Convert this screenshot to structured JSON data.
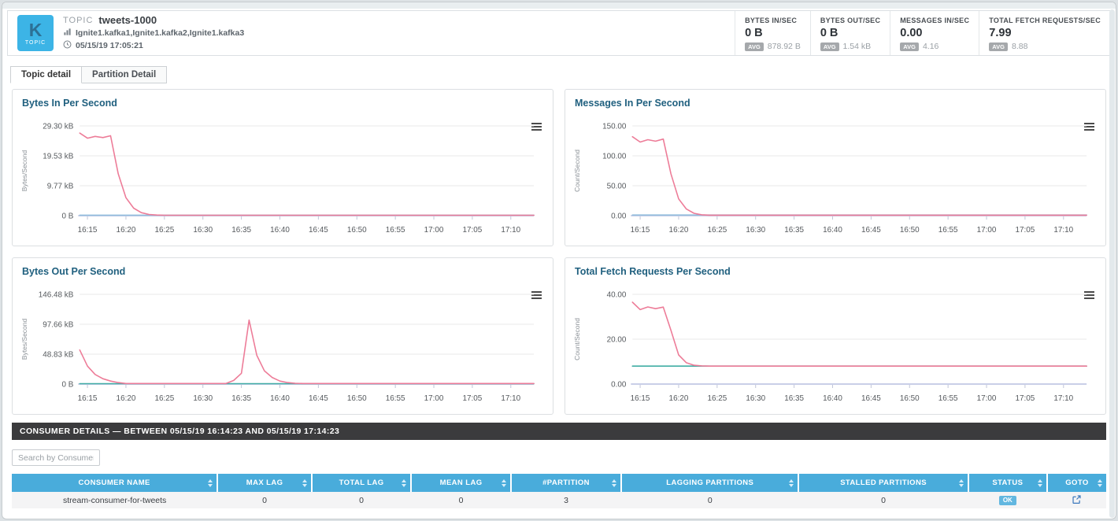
{
  "header": {
    "badge": {
      "letter": "K",
      "label": "TOPIC"
    },
    "topic_type_label": "TOPIC",
    "topic_name": "tweets-1000",
    "hosts": "Ignite1.kafka1,Ignite1.kafka2,Ignite1.kafka3",
    "timestamp": "05/15/19 17:05:21",
    "metrics": [
      {
        "label": "BYTES IN/SEC",
        "value": "0 B",
        "avg_badge": "AVG",
        "avg": "878.92 B"
      },
      {
        "label": "BYTES OUT/SEC",
        "value": "0 B",
        "avg_badge": "AVG",
        "avg": "1.54 kB"
      },
      {
        "label": "MESSAGES IN/SEC",
        "value": "0.00",
        "avg_badge": "AVG",
        "avg": "4.16"
      },
      {
        "label": "TOTAL FETCH REQUESTS/SEC",
        "value": "7.99",
        "avg_badge": "AVG",
        "avg": "8.88"
      }
    ]
  },
  "tabs": [
    {
      "label": "Topic detail",
      "active": true
    },
    {
      "label": "Partition Detail",
      "active": false
    }
  ],
  "chart_data": [
    {
      "type": "line",
      "title": "Bytes In Per Second",
      "ylabel": "Bytes/Second",
      "ylim": [
        0,
        30000
      ],
      "yticks": {
        "values": [
          0,
          10000,
          20000,
          30000
        ],
        "labels": [
          "0 B",
          "9.77 kB",
          "19.53 kB",
          "29.30 kB"
        ]
      },
      "n_points": 60,
      "x_start": "16:14",
      "x_ticks": {
        "indices": [
          1,
          6,
          11,
          16,
          21,
          26,
          31,
          36,
          41,
          46,
          51,
          56
        ],
        "labels": [
          "16:15",
          "16:20",
          "16:25",
          "16:30",
          "16:35",
          "16:40",
          "16:45",
          "16:50",
          "16:55",
          "17:00",
          "17:05",
          "17:10"
        ]
      },
      "grid": true,
      "legend": "none",
      "series": [
        {
          "name": "baseline-blue",
          "color": "#93bedd",
          "values": [
            150
          ],
          "repeat_last_to": 60
        },
        {
          "name": "bytes-in-pink",
          "color": "#ed7c98",
          "values": [
            27600,
            25900,
            26500,
            26100,
            26700,
            14000,
            6000,
            2500,
            1000,
            400,
            200,
            120
          ],
          "repeat_last_to": 60
        }
      ]
    },
    {
      "type": "line",
      "title": "Messages In Per Second",
      "ylabel": "Count/Second",
      "ylim": [
        0,
        150
      ],
      "yticks": {
        "values": [
          0,
          50,
          100,
          150
        ],
        "labels": [
          "0.00",
          "50.00",
          "100.00",
          "150.00"
        ]
      },
      "n_points": 60,
      "x_start": "16:14",
      "x_ticks": {
        "indices": [
          1,
          6,
          11,
          16,
          21,
          26,
          31,
          36,
          41,
          46,
          51,
          56
        ],
        "labels": [
          "16:15",
          "16:20",
          "16:25",
          "16:30",
          "16:35",
          "16:40",
          "16:45",
          "16:50",
          "16:55",
          "17:00",
          "17:05",
          "17:10"
        ]
      },
      "grid": true,
      "legend": "none",
      "series": [
        {
          "name": "baseline-blue",
          "color": "#93bedd",
          "values": [
            1
          ],
          "repeat_last_to": 60
        },
        {
          "name": "messages-in-pink",
          "color": "#ed7c98",
          "values": [
            132,
            123,
            127,
            124.5,
            128,
            70,
            28,
            11,
            4,
            1.5,
            0.8
          ],
          "repeat_last_to": 60
        }
      ]
    },
    {
      "type": "line",
      "title": "Bytes Out Per Second",
      "ylabel": "Bytes/Second",
      "ylim": [
        0,
        150000
      ],
      "yticks": {
        "values": [
          0,
          50000,
          100000,
          150000
        ],
        "labels": [
          "0 B",
          "48.83 kB",
          "97.66 kB",
          "146.48 kB"
        ]
      },
      "n_points": 60,
      "x_start": "16:14",
      "x_ticks": {
        "indices": [
          1,
          6,
          11,
          16,
          21,
          26,
          31,
          36,
          41,
          46,
          51,
          56
        ],
        "labels": [
          "16:15",
          "16:20",
          "16:25",
          "16:30",
          "16:35",
          "16:40",
          "16:45",
          "16:50",
          "16:55",
          "17:00",
          "17:05",
          "17:10"
        ]
      },
      "grid": true,
      "legend": "none",
      "series": [
        {
          "name": "baseline-teal",
          "color": "#41ada5",
          "values": [
            600
          ],
          "repeat_last_to": 60
        },
        {
          "name": "bytes-out-pink",
          "color": "#ed7c98",
          "values": [
            57000,
            30000,
            16000,
            9000,
            5000,
            2500,
            900,
            900,
            900,
            900,
            900,
            900,
            900,
            900,
            900,
            900,
            900,
            900,
            900,
            900,
            6000,
            18000,
            107000,
            48000,
            22000,
            11000,
            5000,
            2500,
            1200,
            900
          ],
          "repeat_last_to": 60
        }
      ]
    },
    {
      "type": "line",
      "title": "Total Fetch Requests Per Second",
      "ylabel": "Count/Second",
      "ylim": [
        0,
        40
      ],
      "yticks": {
        "values": [
          0,
          20,
          40
        ],
        "labels": [
          "0.00",
          "20.00",
          "40.00"
        ]
      },
      "n_points": 60,
      "x_start": "16:14",
      "x_ticks": {
        "indices": [
          1,
          6,
          11,
          16,
          21,
          26,
          31,
          36,
          41,
          46,
          51,
          56
        ],
        "labels": [
          "16:15",
          "16:20",
          "16:25",
          "16:30",
          "16:35",
          "16:40",
          "16:45",
          "16:50",
          "16:55",
          "17:00",
          "17:05",
          "17:10"
        ]
      },
      "grid": true,
      "legend": "none",
      "series": [
        {
          "name": "baseline-teal",
          "color": "#41ada5",
          "values": [
            8
          ],
          "repeat_last_to": 60
        },
        {
          "name": "fetch-requests-pink",
          "color": "#ed7c98",
          "values": [
            36.5,
            33.2,
            34.4,
            33.6,
            34.3,
            24,
            13,
            9.5,
            8.4,
            8.1,
            8
          ],
          "repeat_last_to": 60
        }
      ]
    }
  ],
  "consumer_section": {
    "title": "CONSUMER DETAILS — BETWEEN 05/15/19 16:14:23 AND 05/15/19 17:14:23",
    "search_placeholder": "Search by Consumer",
    "table": {
      "columns": [
        "CONSUMER NAME",
        "MAX LAG",
        "TOTAL LAG",
        "MEAN LAG",
        "#PARTITION",
        "LAGGING PARTITIONS",
        "STALLED PARTITIONS",
        "STATUS",
        "GOTO"
      ],
      "col_widths_pct": [
        18.8,
        8.6,
        9.1,
        9.1,
        10.1,
        16.2,
        15.5,
        7.2,
        5.4
      ],
      "rows": [
        {
          "cells": [
            "stream-consumer-for-tweets",
            "0",
            "0",
            "0",
            "3",
            "0",
            "0"
          ],
          "status": "OK",
          "goto": true
        }
      ]
    }
  },
  "colors": {
    "accent_blue": "#3cb4e6",
    "table_header_blue": "#49acdb",
    "ok_badge_blue": "#62b7e0",
    "chart_title_teal": "#20607f",
    "series_pink": "#ed7c98",
    "series_light_blue": "#93bedd",
    "series_teal": "#41ada5",
    "consumer_bar_dark": "#3b3b3d"
  }
}
